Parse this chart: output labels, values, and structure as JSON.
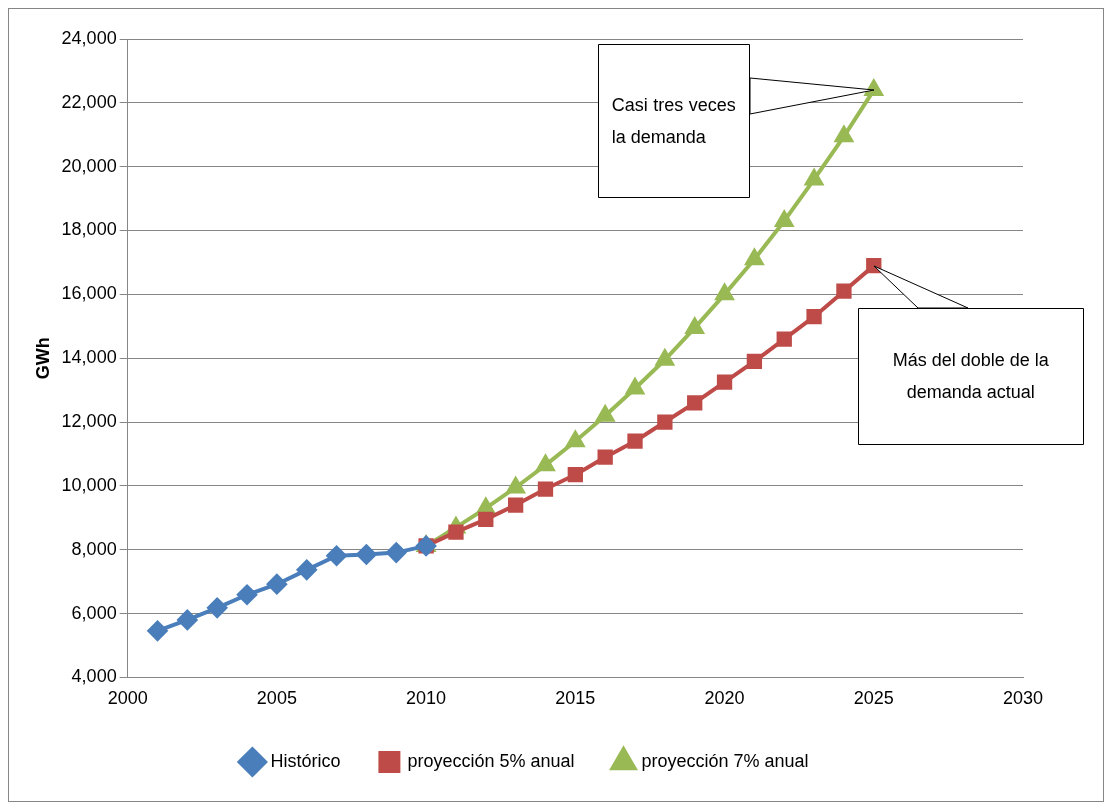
{
  "chart_data": {
    "type": "line",
    "ylabel": "GWh",
    "xlim": [
      2000,
      2030
    ],
    "xticks": [
      2000,
      2005,
      2010,
      2015,
      2020,
      2025,
      2030
    ],
    "ylim": [
      4000,
      24000
    ],
    "yticks": [
      {
        "value": 4000,
        "label": "4,000"
      },
      {
        "value": 6000,
        "label": "6,000"
      },
      {
        "value": 8000,
        "label": "8,000"
      },
      {
        "value": 10000,
        "label": "10,000"
      },
      {
        "value": 12000,
        "label": "12,000"
      },
      {
        "value": 14000,
        "label": "14,000"
      },
      {
        "value": 16000,
        "label": "16,000"
      },
      {
        "value": 18000,
        "label": "18,000"
      },
      {
        "value": 20000,
        "label": "20,000"
      },
      {
        "value": 22000,
        "label": "22,000"
      },
      {
        "value": 24000,
        "label": "24,000"
      }
    ],
    "grid": "y",
    "legend": "bottom",
    "line_style": "solid",
    "series": [
      {
        "name": "Histórico",
        "color": "#4a7ebb",
        "marker": "diamond",
        "x": [
          2001,
          2002,
          2003,
          2004,
          2005,
          2006,
          2007,
          2008,
          2009,
          2010
        ],
        "values": [
          5460,
          5800,
          6180,
          6590,
          6920,
          7370,
          7810,
          7850,
          7910,
          8120
        ]
      },
      {
        "name": "proyección 5% anual",
        "color": "#be4b48",
        "marker": "square",
        "x": [
          2010,
          2011,
          2012,
          2013,
          2014,
          2015,
          2016,
          2017,
          2018,
          2019,
          2020,
          2021,
          2022,
          2023,
          2024,
          2025
        ],
        "values": [
          8120,
          8550,
          8950,
          9400,
          9900,
          10350,
          10900,
          11400,
          12000,
          12600,
          13250,
          13900,
          14600,
          15300,
          16100,
          16900
        ]
      },
      {
        "name": "proyección 7% anual",
        "color": "#98b954",
        "marker": "triangle",
        "x": [
          2010,
          2011,
          2012,
          2013,
          2014,
          2015,
          2016,
          2017,
          2018,
          2019,
          2020,
          2021,
          2022,
          2023,
          2024,
          2025
        ],
        "values": [
          8120,
          8700,
          9300,
          9950,
          10650,
          11400,
          12200,
          13050,
          13950,
          14950,
          16000,
          17100,
          18300,
          19600,
          20950,
          22400
        ]
      }
    ],
    "annotations": [
      "Casi tres veces la demanda",
      "Más del doble de la demanda actual"
    ]
  }
}
